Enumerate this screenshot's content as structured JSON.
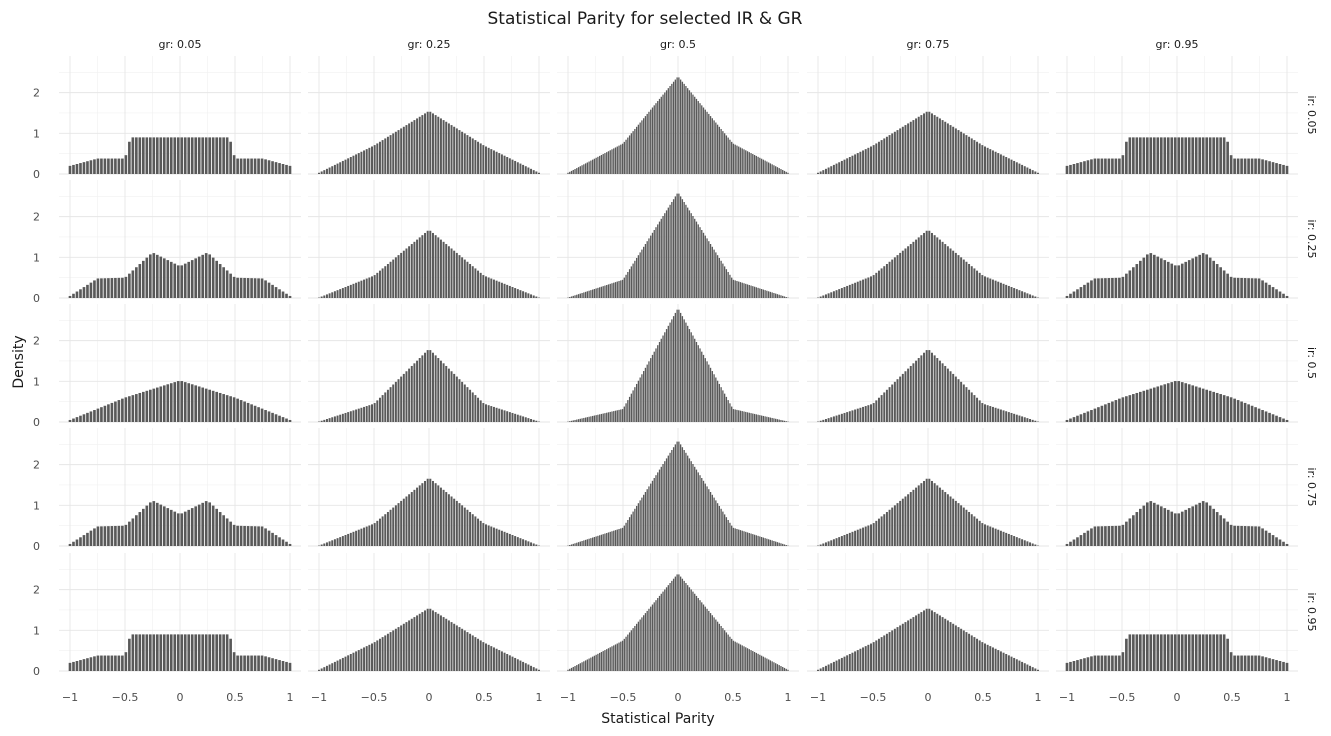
{
  "chart_data": {
    "type": "bar",
    "subtype": "faceted-histogram-grid",
    "title": "Statistical Parity for selected IR & GR",
    "xlabel": "Statistical Parity",
    "ylabel": "Density",
    "xlim": [
      -1,
      1
    ],
    "ylim": [
      0,
      2.9
    ],
    "xticks": [
      -1,
      -0.5,
      0,
      0.5,
      1
    ],
    "xtick_labels": [
      "−1",
      "−0.5",
      "0",
      "0.5",
      "1"
    ],
    "yticks": [
      0,
      1,
      2
    ],
    "ytick_labels": [
      "0",
      "1",
      "2"
    ],
    "col_facet": {
      "name": "gr",
      "labels": [
        "gr: 0.05",
        "gr: 0.25",
        "gr: 0.5",
        "gr: 0.75",
        "gr: 0.95"
      ]
    },
    "row_facet": {
      "name": "ir",
      "labels": [
        "ir: 0.05",
        "ir: 0.25",
        "ir: 0.5",
        "ir: 0.75",
        "ir: 0.95"
      ]
    },
    "bar_color": "#595959",
    "grid": true,
    "legend": "none",
    "facet_profiles": {
      "ir_0.05__gr_0.05": {
        "x": [
          -1,
          -0.75,
          -0.5,
          -0.45,
          0,
          0.45,
          0.5,
          0.75,
          1
        ],
        "density": [
          0.2,
          0.38,
          0.38,
          0.9,
          0.9,
          0.9,
          0.38,
          0.38,
          0.2
        ],
        "bar_width": 0.032
      },
      "ir_0.05__gr_0.25": {
        "x": [
          -1,
          -0.5,
          0,
          0.5,
          1
        ],
        "density": [
          0.03,
          0.7,
          1.55,
          0.7,
          0.03
        ],
        "bar_width": 0.024
      },
      "ir_0.05__gr_0.5": {
        "x": [
          -1,
          -0.5,
          0,
          0.5,
          1
        ],
        "density": [
          0.03,
          0.75,
          2.4,
          0.75,
          0.03
        ],
        "bar_width": 0.016
      },
      "ir_0.05__gr_0.75": {
        "x": [
          -1,
          -0.5,
          0,
          0.5,
          1
        ],
        "density": [
          0.03,
          0.7,
          1.55,
          0.7,
          0.03
        ],
        "bar_width": 0.024
      },
      "ir_0.05__gr_0.95": {
        "x": [
          -1,
          -0.75,
          -0.5,
          -0.45,
          0,
          0.45,
          0.5,
          0.75,
          1
        ],
        "density": [
          0.2,
          0.38,
          0.38,
          0.9,
          0.9,
          0.9,
          0.38,
          0.38,
          0.2
        ],
        "bar_width": 0.032
      },
      "ir_0.25__gr_0.05": {
        "x": [
          -1,
          -0.75,
          -0.5,
          -0.25,
          0,
          0.25,
          0.5,
          0.75,
          1
        ],
        "density": [
          0.05,
          0.48,
          0.5,
          1.12,
          0.78,
          1.12,
          0.5,
          0.48,
          0.05
        ],
        "bar_width": 0.032
      },
      "ir_0.25__gr_0.25": {
        "x": [
          -1,
          -0.5,
          0,
          0.5,
          1
        ],
        "density": [
          0.01,
          0.55,
          1.68,
          0.55,
          0.01
        ],
        "bar_width": 0.024
      },
      "ir_0.25__gr_0.5": {
        "x": [
          -1,
          -0.5,
          0,
          0.5,
          1
        ],
        "density": [
          0.01,
          0.45,
          2.6,
          0.45,
          0.01
        ],
        "bar_width": 0.016
      },
      "ir_0.25__gr_0.75": {
        "x": [
          -1,
          -0.5,
          0,
          0.5,
          1
        ],
        "density": [
          0.01,
          0.55,
          1.68,
          0.55,
          0.01
        ],
        "bar_width": 0.024
      },
      "ir_0.25__gr_0.95": {
        "x": [
          -1,
          -0.75,
          -0.5,
          -0.25,
          0,
          0.25,
          0.5,
          0.75,
          1
        ],
        "density": [
          0.05,
          0.48,
          0.5,
          1.12,
          0.78,
          1.12,
          0.5,
          0.48,
          0.05
        ],
        "bar_width": 0.032
      },
      "ir_0.5__gr_0.05": {
        "x": [
          -1,
          -0.5,
          0,
          0.5,
          1
        ],
        "density": [
          0.05,
          0.6,
          1.02,
          0.6,
          0.05
        ],
        "bar_width": 0.032
      },
      "ir_0.5__gr_0.25": {
        "x": [
          -1,
          -0.5,
          0,
          0.5,
          1
        ],
        "density": [
          0.01,
          0.45,
          1.8,
          0.45,
          0.01
        ],
        "bar_width": 0.024
      },
      "ir_0.5__gr_0.5": {
        "x": [
          -1,
          -0.5,
          0,
          0.5,
          1
        ],
        "density": [
          0.01,
          0.32,
          2.8,
          0.32,
          0.01
        ],
        "bar_width": 0.016
      },
      "ir_0.5__gr_0.75": {
        "x": [
          -1,
          -0.5,
          0,
          0.5,
          1
        ],
        "density": [
          0.01,
          0.45,
          1.8,
          0.45,
          0.01
        ],
        "bar_width": 0.024
      },
      "ir_0.5__gr_0.95": {
        "x": [
          -1,
          -0.5,
          0,
          0.5,
          1
        ],
        "density": [
          0.05,
          0.6,
          1.02,
          0.6,
          0.05
        ],
        "bar_width": 0.032
      },
      "ir_0.75__gr_0.05": {
        "x": [
          -1,
          -0.75,
          -0.5,
          -0.25,
          0,
          0.25,
          0.5,
          0.75,
          1
        ],
        "density": [
          0.05,
          0.48,
          0.5,
          1.12,
          0.78,
          1.12,
          0.5,
          0.48,
          0.05
        ],
        "bar_width": 0.032
      },
      "ir_0.75__gr_0.25": {
        "x": [
          -1,
          -0.5,
          0,
          0.5,
          1
        ],
        "density": [
          0.01,
          0.55,
          1.68,
          0.55,
          0.01
        ],
        "bar_width": 0.024
      },
      "ir_0.75__gr_0.5": {
        "x": [
          -1,
          -0.5,
          0,
          0.5,
          1
        ],
        "density": [
          0.01,
          0.45,
          2.6,
          0.45,
          0.01
        ],
        "bar_width": 0.016
      },
      "ir_0.75__gr_0.75": {
        "x": [
          -1,
          -0.5,
          0,
          0.5,
          1
        ],
        "density": [
          0.01,
          0.55,
          1.68,
          0.55,
          0.01
        ],
        "bar_width": 0.024
      },
      "ir_0.75__gr_0.95": {
        "x": [
          -1,
          -0.75,
          -0.5,
          -0.25,
          0,
          0.25,
          0.5,
          0.75,
          1
        ],
        "density": [
          0.05,
          0.48,
          0.5,
          1.12,
          0.78,
          1.12,
          0.5,
          0.48,
          0.05
        ],
        "bar_width": 0.032
      },
      "ir_0.95__gr_0.05": {
        "x": [
          -1,
          -0.75,
          -0.5,
          -0.45,
          0,
          0.45,
          0.5,
          0.75,
          1
        ],
        "density": [
          0.2,
          0.38,
          0.38,
          0.9,
          0.9,
          0.9,
          0.38,
          0.38,
          0.2
        ],
        "bar_width": 0.032
      },
      "ir_0.95__gr_0.25": {
        "x": [
          -1,
          -0.5,
          0,
          0.5,
          1
        ],
        "density": [
          0.03,
          0.7,
          1.55,
          0.7,
          0.03
        ],
        "bar_width": 0.024
      },
      "ir_0.95__gr_0.5": {
        "x": [
          -1,
          -0.5,
          0,
          0.5,
          1
        ],
        "density": [
          0.03,
          0.75,
          2.4,
          0.75,
          0.03
        ],
        "bar_width": 0.016
      },
      "ir_0.95__gr_0.75": {
        "x": [
          -1,
          -0.5,
          0,
          0.5,
          1
        ],
        "density": [
          0.03,
          0.7,
          1.55,
          0.7,
          0.03
        ],
        "bar_width": 0.024
      },
      "ir_0.95__gr_0.95": {
        "x": [
          -1,
          -0.75,
          -0.5,
          -0.45,
          0,
          0.45,
          0.5,
          0.75,
          1
        ],
        "density": [
          0.2,
          0.38,
          0.38,
          0.9,
          0.9,
          0.9,
          0.38,
          0.38,
          0.2
        ],
        "bar_width": 0.032
      }
    }
  }
}
